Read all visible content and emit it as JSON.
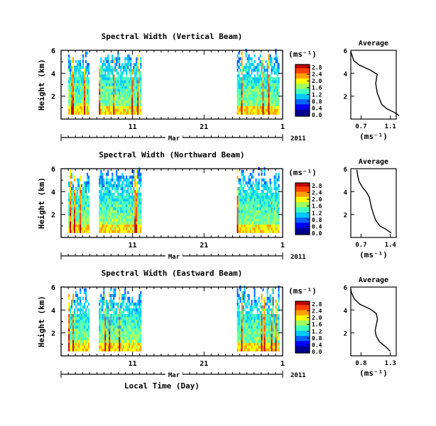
{
  "chart_data": [
    {
      "type": "heatmap",
      "title": "Spectral Width (Vertical Beam)",
      "ylabel": "Height (km)",
      "ylim": [
        0,
        6
      ],
      "y_ticks": [
        "2",
        "4",
        "6"
      ],
      "x_ticks": [
        "11",
        "21",
        "1"
      ],
      "month_label": "Mar",
      "year_label": "2011",
      "data_intervals_day": [
        [
          2.0,
          4.8
        ],
        [
          6.3,
          12.2
        ],
        [
          25.6,
          31.5
        ]
      ],
      "colorbar": {
        "unit": "(ms⁻¹)",
        "ticks": [
          "0.0",
          "0.4",
          "0.8",
          "1.2",
          "1.6",
          "2.0",
          "2.4",
          "2.8"
        ]
      },
      "profile": {
        "title": "Average",
        "xlabel": "(ms⁻¹)",
        "x_ticks": [
          "0.7",
          "1.1"
        ],
        "ylim": [
          0,
          6
        ],
        "y_ticks": [
          "2",
          "4",
          "6"
        ],
        "points": [
          [
            1.22,
            0.3
          ],
          [
            1.15,
            0.6
          ],
          [
            1.05,
            0.9
          ],
          [
            0.98,
            1.3
          ],
          [
            0.95,
            1.8
          ],
          [
            0.92,
            2.3
          ],
          [
            0.91,
            2.7
          ],
          [
            0.9,
            3.1
          ],
          [
            0.91,
            3.5
          ],
          [
            0.92,
            3.9
          ],
          [
            0.82,
            4.3
          ],
          [
            0.68,
            4.7
          ],
          [
            0.6,
            5.1
          ],
          [
            0.58,
            5.5
          ],
          [
            0.56,
            5.9
          ]
        ]
      }
    },
    {
      "type": "heatmap",
      "title": "Spectral Width (Northward Beam)",
      "ylabel": "Height (km)",
      "ylim": [
        0,
        6
      ],
      "y_ticks": [
        "2",
        "4",
        "6"
      ],
      "x_ticks": [
        "11",
        "21",
        "1"
      ],
      "month_label": "Mar",
      "year_label": "2011",
      "data_intervals_day": [
        [
          2.0,
          4.8
        ],
        [
          6.3,
          12.2
        ],
        [
          25.6,
          31.5
        ]
      ],
      "colorbar": {
        "unit": "(ms⁻¹)",
        "ticks": [
          "0.0",
          "0.4",
          "0.8",
          "1.2",
          "1.6",
          "2.0",
          "2.4",
          "2.8"
        ]
      },
      "profile": {
        "title": "Average",
        "xlabel": "(ms⁻¹)",
        "x_ticks": [
          "0.7",
          "1.4"
        ],
        "ylim": [
          0,
          6
        ],
        "y_ticks": [
          "2",
          "4",
          "6"
        ],
        "points": [
          [
            1.42,
            0.4
          ],
          [
            1.3,
            0.7
          ],
          [
            1.15,
            1.0
          ],
          [
            1.05,
            1.5
          ],
          [
            1.0,
            2.0
          ],
          [
            0.95,
            2.6
          ],
          [
            0.92,
            3.1
          ],
          [
            0.9,
            3.5
          ],
          [
            0.82,
            4.0
          ],
          [
            0.73,
            4.4
          ],
          [
            0.65,
            4.9
          ],
          [
            0.62,
            5.4
          ],
          [
            0.6,
            5.9
          ]
        ]
      }
    },
    {
      "type": "heatmap",
      "title": "Spectral Width (Eastward Beam)",
      "ylabel": "Height (km)",
      "ylim": [
        0,
        6
      ],
      "y_ticks": [
        "2",
        "4",
        "6"
      ],
      "x_ticks": [
        "11",
        "21",
        "1"
      ],
      "month_label": "Mar",
      "year_label": "2011",
      "xlabel": "Local Time (Day)",
      "data_intervals_day": [
        [
          2.0,
          4.8
        ],
        [
          6.3,
          12.2
        ],
        [
          25.6,
          31.5
        ]
      ],
      "colorbar": {
        "unit": "(ms⁻¹)",
        "ticks": [
          "0.0",
          "0.4",
          "0.8",
          "1.2",
          "1.6",
          "2.0",
          "2.4",
          "2.8"
        ]
      },
      "profile": {
        "title": "Average",
        "xlabel": "(ms⁻¹)",
        "x_ticks": [
          "0.8",
          "1.3"
        ],
        "ylim": [
          0,
          6
        ],
        "y_ticks": [
          "2",
          "4",
          "6"
        ],
        "points": [
          [
            1.3,
            0.4
          ],
          [
            1.22,
            0.8
          ],
          [
            1.12,
            1.2
          ],
          [
            1.06,
            1.7
          ],
          [
            1.04,
            2.2
          ],
          [
            1.06,
            2.7
          ],
          [
            1.08,
            3.2
          ],
          [
            1.06,
            3.7
          ],
          [
            0.95,
            4.1
          ],
          [
            0.78,
            4.5
          ],
          [
            0.68,
            5.0
          ],
          [
            0.64,
            5.5
          ],
          [
            0.62,
            5.9
          ]
        ]
      }
    }
  ],
  "colors": {
    "colormap": [
      "#00008f",
      "#0000ff",
      "#0064ff",
      "#00c8ff",
      "#40ffbf",
      "#a0ff60",
      "#ffff00",
      "#ffa000",
      "#ff4000",
      "#c00000"
    ],
    "axes": "#000000"
  }
}
